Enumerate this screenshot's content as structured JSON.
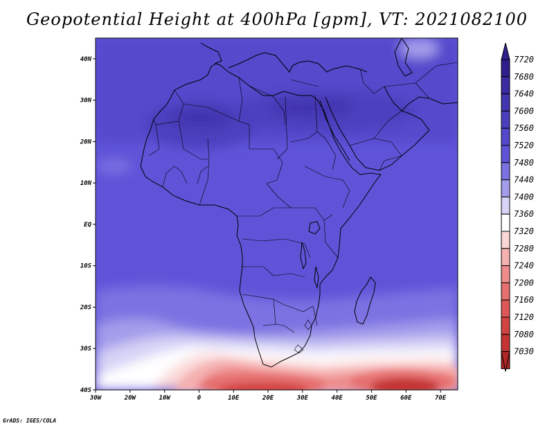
{
  "title": "Geopotential Height at 400hPa [gpm], VT: 2021082100",
  "credit": "GrADS: IGES/COLA",
  "map": {
    "lon_range": [
      -30,
      75
    ],
    "lat_range": [
      -40,
      45
    ],
    "lon_ticks": [
      {
        "value": -30,
        "label": "30W"
      },
      {
        "value": -20,
        "label": "20W"
      },
      {
        "value": -10,
        "label": "10W"
      },
      {
        "value": 0,
        "label": "0"
      },
      {
        "value": 10,
        "label": "10E"
      },
      {
        "value": 20,
        "label": "20E"
      },
      {
        "value": 30,
        "label": "30E"
      },
      {
        "value": 40,
        "label": "40E"
      },
      {
        "value": 50,
        "label": "50E"
      },
      {
        "value": 60,
        "label": "60E"
      },
      {
        "value": 70,
        "label": "70E"
      }
    ],
    "lat_ticks": [
      {
        "value": 40,
        "label": "40N"
      },
      {
        "value": 30,
        "label": "30N"
      },
      {
        "value": 20,
        "label": "20N"
      },
      {
        "value": 10,
        "label": "10N"
      },
      {
        "value": 0,
        "label": "EQ"
      },
      {
        "value": -10,
        "label": "10S"
      },
      {
        "value": -20,
        "label": "20S"
      },
      {
        "value": -30,
        "label": "30S"
      },
      {
        "value": -40,
        "label": "40S"
      }
    ]
  },
  "colorbar": {
    "levels": [
      {
        "label": "7720",
        "color": "#2e1f8c"
      },
      {
        "label": "7680",
        "color": "#3a2ba0"
      },
      {
        "label": "7640",
        "color": "#4235b0"
      },
      {
        "label": "7600",
        "color": "#4b3fbe"
      },
      {
        "label": "7560",
        "color": "#5448cc"
      },
      {
        "label": "7520",
        "color": "#5f54d8"
      },
      {
        "label": "7480",
        "color": "#7b72e2"
      },
      {
        "label": "7440",
        "color": "#a49deb"
      },
      {
        "label": "7400",
        "color": "#d6d3f6"
      },
      {
        "label": "7360",
        "color": "#ffffff"
      },
      {
        "label": "7320",
        "color": "#fbd6d6"
      },
      {
        "label": "7280",
        "color": "#f5b0b0"
      },
      {
        "label": "7240",
        "color": "#ee8c8c"
      },
      {
        "label": "7200",
        "color": "#e67070"
      },
      {
        "label": "7160",
        "color": "#de5858"
      },
      {
        "label": "7120",
        "color": "#d24444"
      },
      {
        "label": "7080",
        "color": "#c43434"
      },
      {
        "label": "7030",
        "color": "#b02828"
      }
    ]
  }
}
